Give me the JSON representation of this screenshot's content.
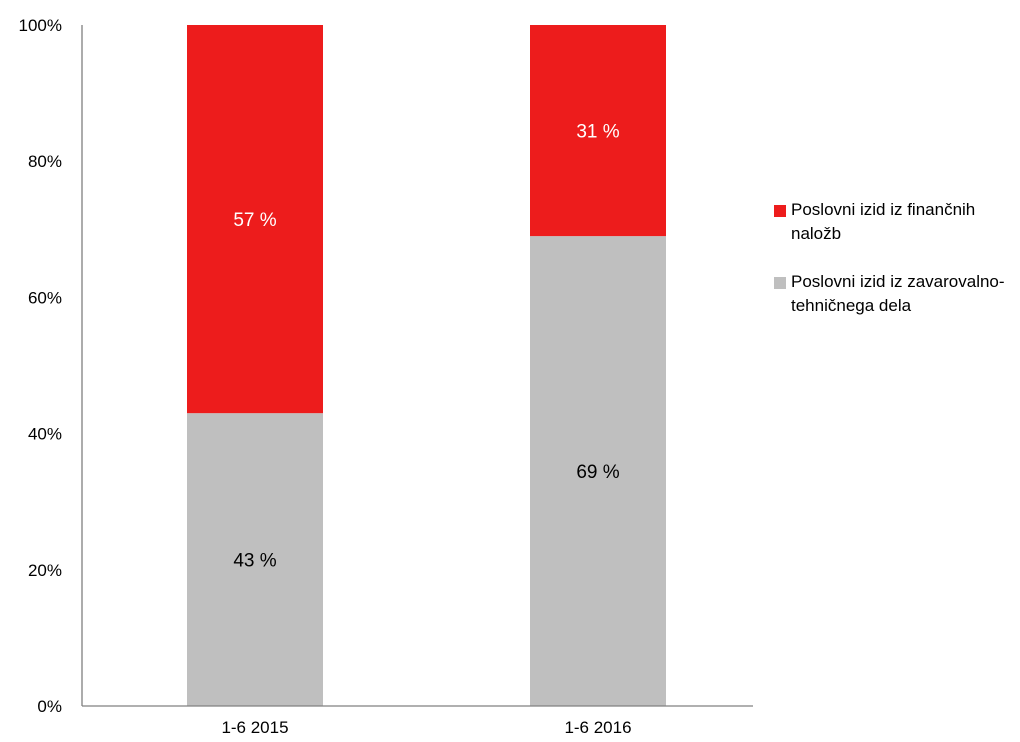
{
  "colors": {
    "financial": "#ed1c1c",
    "technical": "#bfbfbf",
    "axis": "#808080",
    "label_on_red": "#ffffff",
    "label_on_gray": "#000000"
  },
  "chart_data": {
    "type": "bar",
    "stacked": true,
    "percent_stacked": true,
    "title": "",
    "xlabel": "",
    "ylabel": "",
    "ylim": [
      0,
      100
    ],
    "y_ticks": [
      "0%",
      "20%",
      "40%",
      "60%",
      "80%",
      "100%"
    ],
    "grid": false,
    "legend_position": "right",
    "categories": [
      "1-6 2015",
      "1-6 2016"
    ],
    "series": [
      {
        "name": "Poslovni izid iz zavarovalno-tehničnega dela",
        "values": [
          43,
          69
        ],
        "labels": [
          "43 %",
          "69 %"
        ]
      },
      {
        "name": "Poslovni izid iz finančnih naložb",
        "values": [
          57,
          31
        ],
        "labels": [
          "57 %",
          "31 %"
        ]
      }
    ]
  },
  "legend": {
    "items": [
      {
        "label": "Poslovni izid iz finančnih naložb",
        "color": "#ed1c1c"
      },
      {
        "label": "Poslovni izid iz zavarovalno-tehničnega dela",
        "color": "#bfbfbf"
      }
    ]
  }
}
